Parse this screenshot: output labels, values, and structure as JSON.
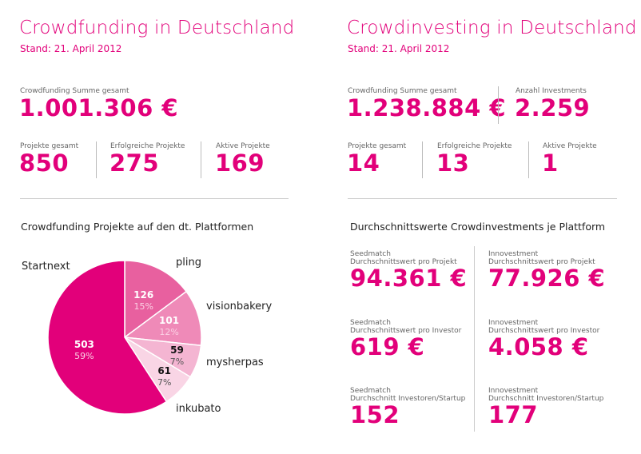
{
  "left": {
    "title": "Crowdfunding in Deutschland",
    "stand": "Stand: 21. April 2012",
    "sum_label": "Crowdfunding Summe gesamt",
    "sum_value": "1.001.306 €",
    "stats": [
      {
        "label": "Projekte gesamt",
        "value": "850"
      },
      {
        "label": "Erfolgreiche Projekte",
        "value": "275"
      },
      {
        "label": "Aktive Projekte",
        "value": "169"
      }
    ],
    "section_heading": "Crowdfunding Projekte auf den dt. Plattformen"
  },
  "right": {
    "title": "Crowdinvesting in Deutschland",
    "stand": "Stand: 21. April 2012",
    "sum_label": "Crowdfunding Summe gesamt",
    "sum_value": "1.238.884 €",
    "investments_label": "Anzahl Investments",
    "investments_value": "2.259",
    "stats": [
      {
        "label": "Projekte gesamt",
        "value": "14"
      },
      {
        "label": "Erfolgreiche Projekte",
        "value": "13"
      },
      {
        "label": "Aktive Projekte",
        "value": "1"
      }
    ],
    "section_heading": "Durchschnittswerte Crowdinvestments je Plattform",
    "averages": [
      {
        "platform": "Seedmatch",
        "metric": "Durchschnittswert pro Projekt",
        "value": "94.361 €"
      },
      {
        "platform": "Innovestment",
        "metric": "Durchschnittswert pro Projekt",
        "value": "77.926 €"
      },
      {
        "platform": "Seedmatch",
        "metric": "Durchschnittswert pro Investor",
        "value": "619 €"
      },
      {
        "platform": "Innovestment",
        "metric": "Durchschnittswert pro Investor",
        "value": "4.058 €"
      },
      {
        "platform": "Seedmatch",
        "metric": "Durchschnitt Investoren/Startup",
        "value": "152"
      },
      {
        "platform": "Innovestment",
        "metric": "Durchschnitt Investoren/Startup",
        "value": "177"
      }
    ]
  },
  "chart_data": {
    "type": "pie",
    "title": "Crowdfunding Projekte auf den dt. Plattformen",
    "slices": [
      {
        "name": "pling",
        "value": 126,
        "percent": "15%",
        "color": "#e8609f"
      },
      {
        "name": "visionbakery",
        "value": 101,
        "percent": "12%",
        "color": "#ef8ab8"
      },
      {
        "name": "mysherpas",
        "value": 59,
        "percent": "7%",
        "color": "#f4b5d2"
      },
      {
        "name": "inkubato",
        "value": 61,
        "percent": "7%",
        "color": "#f9d5e5"
      },
      {
        "name": "Startnext",
        "value": 503,
        "percent": "59%",
        "color": "#e2007a"
      }
    ]
  },
  "colors": {
    "accent": "#e2007a"
  }
}
